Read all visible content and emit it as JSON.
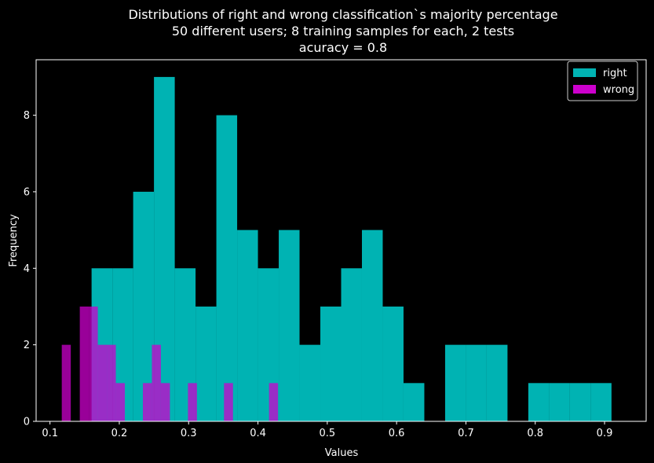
{
  "chart_data": {
    "type": "histogram",
    "title_lines": [
      "Distributions of right and wrong classification`s majority percentage",
      "50 different users; 8 training samples for each, 2 tests",
      "acuracy = 0.8"
    ],
    "xlabel": "Values",
    "ylabel": "Frequency",
    "xlim": [
      0.08,
      0.96
    ],
    "ylim": [
      0,
      9.45
    ],
    "xticks": [
      "0.1",
      "0.2",
      "0.3",
      "0.4",
      "0.5",
      "0.6",
      "0.7",
      "0.8",
      "0.9"
    ],
    "yticks": [
      "0",
      "2",
      "4",
      "6",
      "8"
    ],
    "legend_position": "upper-right",
    "series": [
      {
        "name": "right",
        "color": "#00b3b3",
        "bins": [
          {
            "x0": 0.16,
            "x1": 0.19,
            "count": 4
          },
          {
            "x0": 0.19,
            "x1": 0.22,
            "count": 4
          },
          {
            "x0": 0.22,
            "x1": 0.25,
            "count": 6
          },
          {
            "x0": 0.25,
            "x1": 0.28,
            "count": 9
          },
          {
            "x0": 0.28,
            "x1": 0.31,
            "count": 4
          },
          {
            "x0": 0.31,
            "x1": 0.34,
            "count": 3
          },
          {
            "x0": 0.34,
            "x1": 0.37,
            "count": 8
          },
          {
            "x0": 0.37,
            "x1": 0.4,
            "count": 5
          },
          {
            "x0": 0.4,
            "x1": 0.43,
            "count": 4
          },
          {
            "x0": 0.43,
            "x1": 0.46,
            "count": 5
          },
          {
            "x0": 0.46,
            "x1": 0.49,
            "count": 2
          },
          {
            "x0": 0.49,
            "x1": 0.52,
            "count": 3
          },
          {
            "x0": 0.52,
            "x1": 0.55,
            "count": 4
          },
          {
            "x0": 0.55,
            "x1": 0.58,
            "count": 5
          },
          {
            "x0": 0.58,
            "x1": 0.61,
            "count": 3
          },
          {
            "x0": 0.61,
            "x1": 0.64,
            "count": 1
          },
          {
            "x0": 0.67,
            "x1": 0.7,
            "count": 2
          },
          {
            "x0": 0.7,
            "x1": 0.73,
            "count": 2
          },
          {
            "x0": 0.73,
            "x1": 0.76,
            "count": 2
          },
          {
            "x0": 0.79,
            "x1": 0.82,
            "count": 1
          },
          {
            "x0": 0.82,
            "x1": 0.85,
            "count": 1
          },
          {
            "x0": 0.85,
            "x1": 0.88,
            "count": 1
          },
          {
            "x0": 0.88,
            "x1": 0.91,
            "count": 1
          }
        ]
      },
      {
        "name": "wrong",
        "color": "#cc00cc",
        "opacity": 0.75,
        "bins": [
          {
            "x0": 0.117,
            "x1": 0.13,
            "count": 2
          },
          {
            "x0": 0.143,
            "x1": 0.156,
            "count": 3
          },
          {
            "x0": 0.156,
            "x1": 0.169,
            "count": 3
          },
          {
            "x0": 0.169,
            "x1": 0.182,
            "count": 2
          },
          {
            "x0": 0.182,
            "x1": 0.195,
            "count": 2
          },
          {
            "x0": 0.195,
            "x1": 0.208,
            "count": 1
          },
          {
            "x0": 0.234,
            "x1": 0.247,
            "count": 1
          },
          {
            "x0": 0.247,
            "x1": 0.26,
            "count": 2
          },
          {
            "x0": 0.26,
            "x1": 0.273,
            "count": 1
          },
          {
            "x0": 0.299,
            "x1": 0.312,
            "count": 1
          },
          {
            "x0": 0.351,
            "x1": 0.364,
            "count": 1
          },
          {
            "x0": 0.416,
            "x1": 0.429,
            "count": 1
          }
        ]
      }
    ]
  }
}
